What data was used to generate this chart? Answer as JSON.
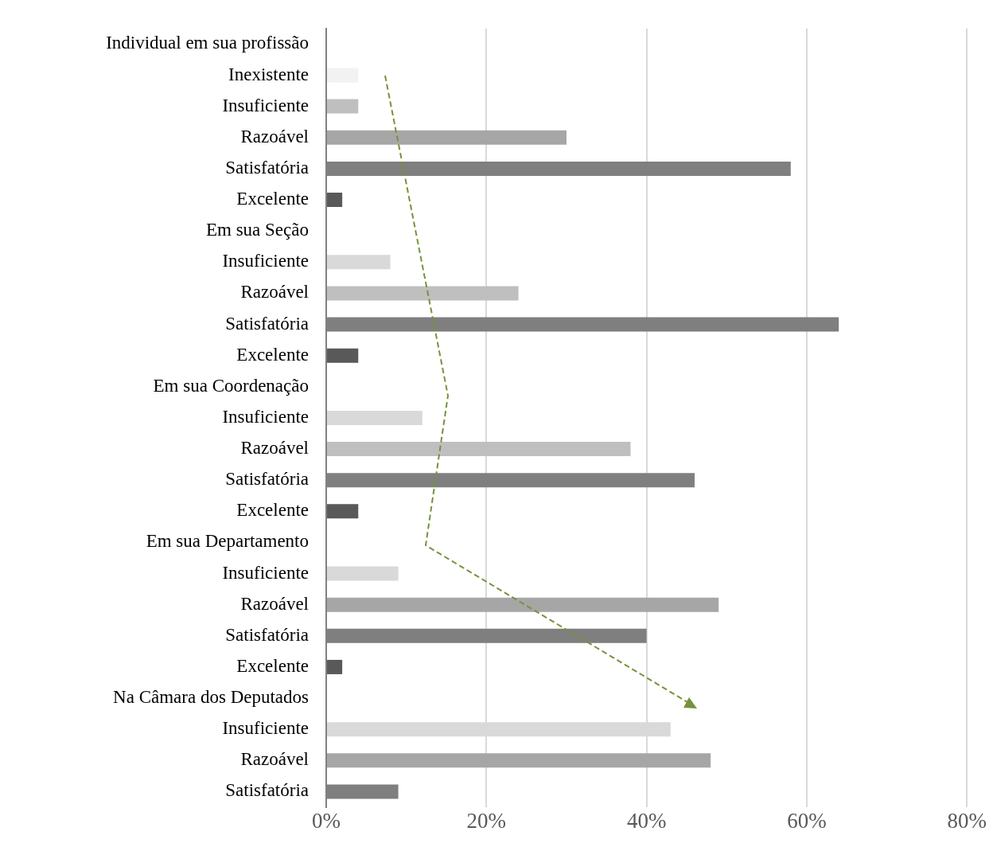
{
  "chart_data": {
    "type": "bar",
    "orientation": "horizontal",
    "categories": [
      "Individual em sua profissão",
      "Inexistente",
      "Insuficiente",
      "Razoável",
      "Satisfatória",
      "Excelente",
      "Em sua Seção",
      "Insuficiente",
      "Razoável",
      "Satisfatória",
      "Excelente",
      "Em sua Coordenação",
      "Insuficiente",
      "Razoável",
      "Satisfatória",
      "Excelente",
      "Em sua Departamento",
      "Insuficiente",
      "Razoável",
      "Satisfatória",
      "Excelente",
      "Na Câmara dos Deputados",
      "Insuficiente",
      "Razoável",
      "Satisfatória"
    ],
    "values": [
      null,
      4,
      4,
      30,
      58,
      2,
      null,
      8,
      24,
      64,
      4,
      null,
      12,
      38,
      46,
      4,
      null,
      9,
      49,
      40,
      2,
      null,
      43,
      48,
      9
    ],
    "colors": [
      "#ffffff",
      "#f2f2f2",
      "#bfbfbf",
      "#a6a6a6",
      "#7f7f7f",
      "#595959",
      "#ffffff",
      "#d9d9d9",
      "#bfbfbf",
      "#7f7f7f",
      "#595959",
      "#ffffff",
      "#d9d9d9",
      "#bfbfbf",
      "#7f7f7f",
      "#595959",
      "#ffffff",
      "#d9d9d9",
      "#a6a6a6",
      "#7f7f7f",
      "#595959",
      "#ffffff",
      "#d9d9d9",
      "#a6a6a6",
      "#7f7f7f"
    ],
    "xlim": [
      0,
      80
    ],
    "xticks": [
      {
        "value": 0,
        "label": "0%"
      },
      {
        "value": 20,
        "label": "20%"
      },
      {
        "value": 40,
        "label": "40%"
      },
      {
        "value": 60,
        "label": "60%"
      },
      {
        "value": 80,
        "label": "80%"
      }
    ],
    "grid": "x",
    "legend": false
  }
}
